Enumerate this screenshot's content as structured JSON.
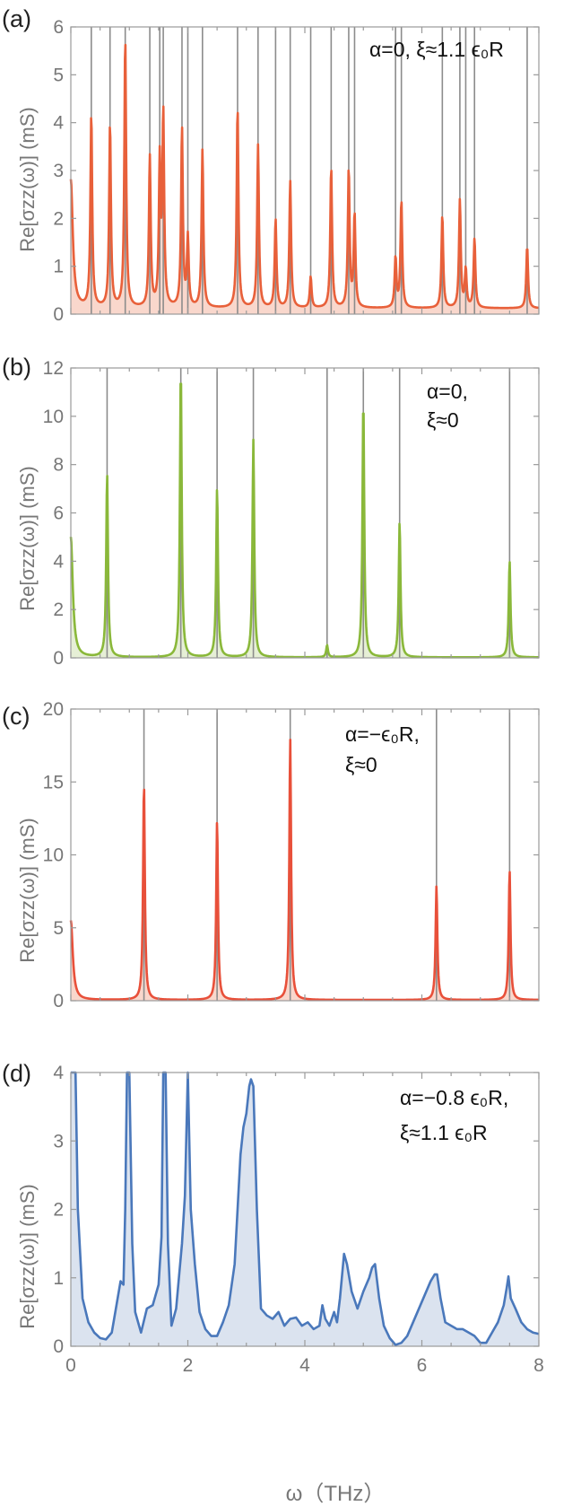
{
  "xaxis": {
    "label": "ω（THz）",
    "lim": [
      0,
      8
    ],
    "ticks": [
      0,
      2,
      4,
      6,
      8
    ]
  },
  "chart_data": [
    {
      "type": "line",
      "panel": "(a)",
      "ylabel": "Re[σzz(ω)] (mS)",
      "ylim": [
        0,
        6
      ],
      "yticks": [
        0,
        1,
        2,
        3,
        4,
        5,
        6
      ],
      "annotation": [
        "α=0, ξ≈1.1 ϵ₀R"
      ],
      "color": "#e8603a",
      "fill": "#f9d7cc",
      "background": 0.12,
      "width": 0.018,
      "start_value": 2.8,
      "peaks": [
        {
          "x": 0.35,
          "y": 4.05
        },
        {
          "x": 0.67,
          "y": 3.85
        },
        {
          "x": 0.93,
          "y": 5.65
        },
        {
          "x": 1.35,
          "y": 3.15
        },
        {
          "x": 1.52,
          "y": 3.0
        },
        {
          "x": 1.58,
          "y": 4.0
        },
        {
          "x": 1.9,
          "y": 3.75
        },
        {
          "x": 2.0,
          "y": 1.45
        },
        {
          "x": 2.25,
          "y": 3.3
        },
        {
          "x": 2.85,
          "y": 4.2
        },
        {
          "x": 3.2,
          "y": 3.4
        },
        {
          "x": 3.5,
          "y": 1.85
        },
        {
          "x": 3.75,
          "y": 2.65
        },
        {
          "x": 4.1,
          "y": 0.65
        },
        {
          "x": 4.45,
          "y": 2.95
        },
        {
          "x": 4.75,
          "y": 2.9
        },
        {
          "x": 4.85,
          "y": 1.95
        },
        {
          "x": 5.55,
          "y": 1.05
        },
        {
          "x": 5.65,
          "y": 2.25
        },
        {
          "x": 6.35,
          "y": 1.95
        },
        {
          "x": 6.65,
          "y": 2.25
        },
        {
          "x": 6.75,
          "y": 0.8
        },
        {
          "x": 6.9,
          "y": 1.45
        },
        {
          "x": 7.8,
          "y": 1.3
        }
      ],
      "vlines": [
        0.35,
        0.67,
        0.93,
        1.35,
        1.52,
        1.58,
        1.9,
        2.0,
        2.25,
        2.85,
        3.2,
        3.5,
        3.75,
        4.1,
        4.45,
        4.75,
        4.85,
        5.55,
        5.65,
        6.35,
        6.65,
        6.75,
        6.9,
        7.8
      ]
    },
    {
      "type": "line",
      "panel": "(b)",
      "ylabel": "Re[σzz(ω)] (mS)",
      "ylim": [
        0,
        12
      ],
      "yticks": [
        0,
        2,
        4,
        6,
        8,
        10,
        12
      ],
      "annotation": [
        "α=0,",
        "ξ≈0"
      ],
      "color": "#8ab83a",
      "fill": "#e6efd6",
      "background": 0.02,
      "width": 0.018,
      "start_value": 5.0,
      "peaks": [
        {
          "x": 0.62,
          "y": 7.6
        },
        {
          "x": 1.88,
          "y": 12.0
        },
        {
          "x": 2.5,
          "y": 7.0
        },
        {
          "x": 3.12,
          "y": 9.0
        },
        {
          "x": 4.38,
          "y": 0.5
        },
        {
          "x": 5.0,
          "y": 10.7
        },
        {
          "x": 5.62,
          "y": 5.6
        },
        {
          "x": 7.5,
          "y": 4.0
        }
      ],
      "vlines": [
        0.62,
        1.88,
        2.5,
        3.12,
        4.38,
        5.0,
        5.62,
        7.5
      ]
    },
    {
      "type": "line",
      "panel": "(c)",
      "ylabel": "Re[σzz(ω)] (mS)",
      "ylim": [
        0,
        20
      ],
      "yticks": [
        0,
        5,
        10,
        15,
        20
      ],
      "annotation": [
        "α=−ϵ₀R,",
        "ξ≈0"
      ],
      "color": "#e8503a",
      "fill": "#f9d7cc",
      "background": 0.05,
      "width": 0.018,
      "start_value": 5.5,
      "peaks": [
        {
          "x": 1.25,
          "y": 14.9
        },
        {
          "x": 2.5,
          "y": 12.3
        },
        {
          "x": 3.75,
          "y": 17.9
        },
        {
          "x": 6.25,
          "y": 7.8
        },
        {
          "x": 7.5,
          "y": 8.9
        }
      ],
      "vlines": [
        1.25,
        2.5,
        3.75,
        6.25,
        7.5
      ]
    },
    {
      "type": "area",
      "panel": "(d)",
      "ylabel": "Re[σzz(ω)] (mS)",
      "ylim": [
        0,
        4
      ],
      "yticks": [
        0,
        1,
        2,
        3,
        4
      ],
      "annotation": [
        "α=−0.8 ϵ₀R,",
        "ξ≈1.1 ϵ₀R"
      ],
      "color": "#4a78bb",
      "fill": "#dbe3ef",
      "x": [
        0.0,
        0.08,
        0.12,
        0.2,
        0.3,
        0.4,
        0.5,
        0.6,
        0.7,
        0.78,
        0.85,
        0.9,
        0.93,
        0.96,
        1.0,
        1.05,
        1.1,
        1.2,
        1.3,
        1.4,
        1.5,
        1.55,
        1.58,
        1.62,
        1.66,
        1.72,
        1.8,
        1.9,
        1.95,
        2.0,
        2.05,
        2.12,
        2.2,
        2.3,
        2.4,
        2.5,
        2.6,
        2.7,
        2.8,
        2.9,
        2.95,
        3.0,
        3.05,
        3.08,
        3.12,
        3.18,
        3.25,
        3.35,
        3.45,
        3.55,
        3.65,
        3.75,
        3.85,
        3.95,
        4.05,
        4.15,
        4.25,
        4.3,
        4.35,
        4.42,
        4.5,
        4.55,
        4.6,
        4.67,
        4.72,
        4.8,
        4.9,
        5.0,
        5.1,
        5.15,
        5.2,
        5.27,
        5.35,
        5.45,
        5.55,
        5.65,
        5.75,
        5.85,
        5.95,
        6.05,
        6.15,
        6.22,
        6.26,
        6.32,
        6.4,
        6.5,
        6.6,
        6.7,
        6.8,
        6.9,
        7.0,
        7.1,
        7.2,
        7.3,
        7.4,
        7.45,
        7.48,
        7.52,
        7.6,
        7.7,
        7.8,
        7.9,
        8.0
      ],
      "y": [
        4.0,
        4.0,
        2.0,
        0.7,
        0.35,
        0.2,
        0.12,
        0.1,
        0.2,
        0.6,
        0.95,
        0.9,
        2.0,
        4.0,
        4.0,
        1.5,
        0.5,
        0.2,
        0.55,
        0.6,
        0.9,
        1.6,
        4.0,
        4.0,
        1.5,
        0.3,
        0.55,
        1.5,
        2.2,
        4.0,
        2.0,
        1.2,
        0.5,
        0.25,
        0.15,
        0.15,
        0.35,
        0.6,
        1.2,
        2.8,
        3.2,
        3.4,
        3.8,
        3.9,
        3.8,
        2.0,
        0.55,
        0.45,
        0.4,
        0.5,
        0.3,
        0.4,
        0.42,
        0.3,
        0.35,
        0.25,
        0.3,
        0.6,
        0.4,
        0.3,
        0.5,
        0.35,
        0.7,
        1.35,
        1.2,
        0.8,
        0.55,
        0.8,
        1.0,
        1.15,
        1.2,
        0.7,
        0.3,
        0.12,
        0.02,
        0.05,
        0.15,
        0.35,
        0.55,
        0.75,
        0.95,
        1.05,
        1.05,
        0.7,
        0.35,
        0.3,
        0.25,
        0.25,
        0.2,
        0.15,
        0.05,
        0.05,
        0.2,
        0.35,
        0.6,
        0.85,
        1.02,
        0.7,
        0.55,
        0.35,
        0.25,
        0.2,
        0.18
      ]
    }
  ]
}
